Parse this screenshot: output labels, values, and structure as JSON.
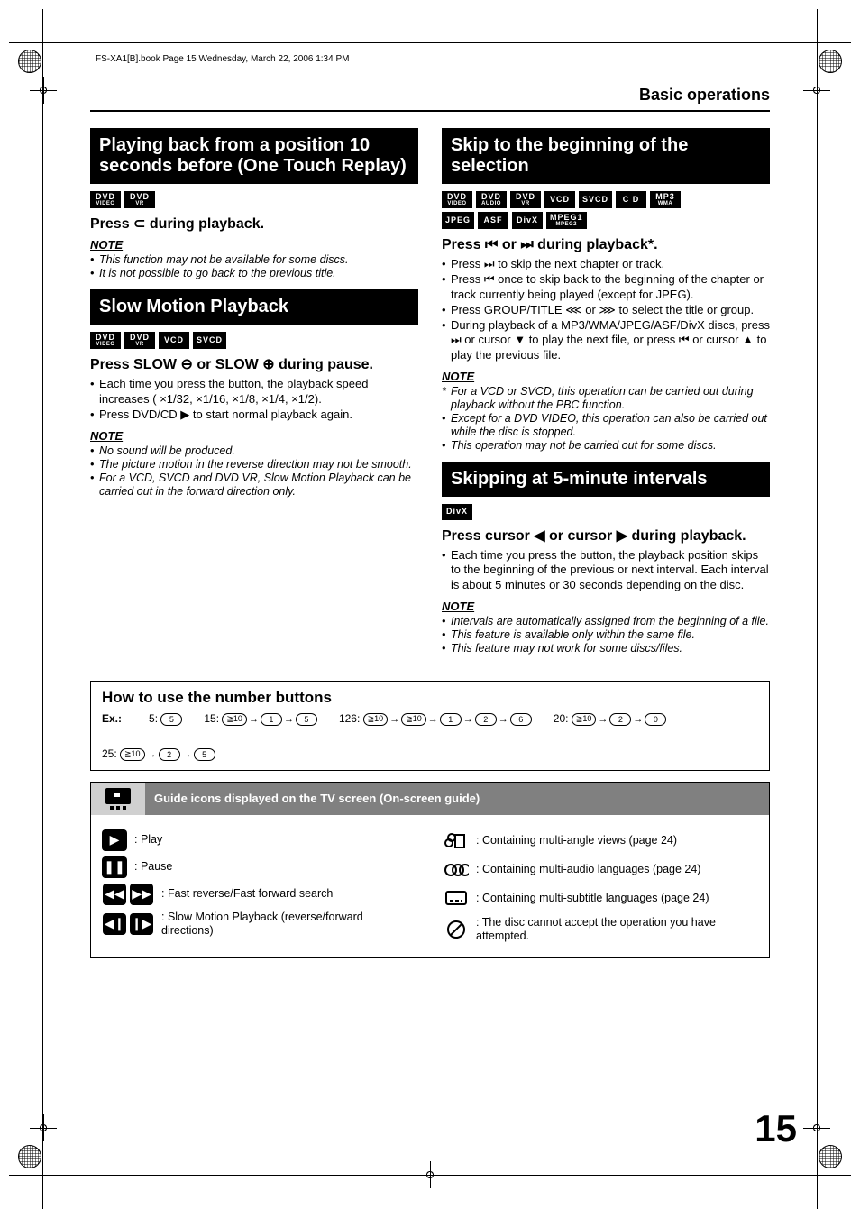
{
  "running_header": "FS-XA1[B].book  Page 15  Wednesday, March 22, 2006  1:34 PM",
  "section_header": "Basic operations",
  "page_number": "15",
  "left": {
    "replay": {
      "title": "Playing back from a position 10 seconds before (One Touch Replay)",
      "formats": [
        {
          "top": "DVD",
          "sub": "VIDEO"
        },
        {
          "top": "DVD",
          "sub": "VR"
        }
      ],
      "instr_pre": "Press ",
      "instr_sym": "⊂",
      "instr_post": " during playback.",
      "note_h": "NOTE",
      "notes": [
        "This function may not be available for some discs.",
        "It is not possible to go back to the previous title."
      ]
    },
    "slow": {
      "title": "Slow Motion Playback",
      "formats": [
        {
          "top": "DVD",
          "sub": "VIDEO"
        },
        {
          "top": "DVD",
          "sub": "VR"
        },
        {
          "top": "VCD"
        },
        {
          "top": "SVCD"
        }
      ],
      "instr": "Press SLOW ⊖ or SLOW ⊕ during pause.",
      "bullets": [
        "Each time you press the button, the playback speed increases ( ×1/32, ×1/16, ×1/8, ×1/4, ×1/2).",
        "Press DVD/CD ▶ to start normal playback again."
      ],
      "note_h": "NOTE",
      "notes": [
        "No sound will be produced.",
        "The picture motion in the reverse direction may not be smooth.",
        "For a VCD, SVCD and DVD VR, Slow Motion Playback can be carried out in the forward direction only."
      ]
    }
  },
  "right": {
    "skip": {
      "title": "Skip to the beginning of the selection",
      "formats1": [
        {
          "top": "DVD",
          "sub": "VIDEO"
        },
        {
          "top": "DVD",
          "sub": "AUDIO"
        },
        {
          "top": "DVD",
          "sub": "VR"
        },
        {
          "top": "VCD"
        },
        {
          "top": "SVCD"
        },
        {
          "top": "C D"
        },
        {
          "top": "MP3",
          "sub": "WMA"
        }
      ],
      "formats2": [
        {
          "top": "JPEG"
        },
        {
          "top": "ASF"
        },
        {
          "top": "DivX"
        },
        {
          "top": "MPEG1",
          "sub": "MPEG2"
        }
      ],
      "instr": "Press ⏮ or ⏭ during playback*.",
      "bullets": [
        "Press ⏭ to skip the next chapter or track.",
        "Press ⏮ once to skip back to the beginning of the chapter or track currently being played (except for JPEG).",
        "Press GROUP/TITLE  ⋘ or ⋙ to select the title or group.",
        "During playback of a MP3/WMA/JPEG/ASF/DivX discs, press ⏭ or cursor ▼ to play the next file, or press ⏮ or cursor ▲ to play the previous file."
      ],
      "note_h": "NOTE",
      "notes": [
        {
          "star": true,
          "t": "For a VCD or SVCD, this operation can be carried out during playback without the PBC function."
        },
        {
          "t": "Except for a DVD VIDEO, this operation can also be carried out while the disc is stopped."
        },
        {
          "t": "This operation may not be carried out for some discs."
        }
      ]
    },
    "interval": {
      "title": "Skipping at 5-minute intervals",
      "formats": [
        {
          "top": "DivX"
        }
      ],
      "instr": "Press cursor ◀ or cursor ▶ during playback.",
      "bullets": [
        "Each time you press the button, the playback position skips to the beginning of the previous or next interval. Each interval is about 5 minutes or 30 seconds depending on the disc."
      ],
      "note_h": "NOTE",
      "notes": [
        "Intervals are automatically assigned from the beginning of a file.",
        "This feature is available only within the same file.",
        "This feature may not work for some discs/files."
      ]
    }
  },
  "numbers": {
    "title": "How to use the number buttons",
    "ex": "Ex.:",
    "items": [
      {
        "label": "5:",
        "seq": [
          "5"
        ]
      },
      {
        "label": "15:",
        "seq": [
          "h10",
          "1",
          "5"
        ]
      },
      {
        "label": "126:",
        "seq": [
          "h10",
          "h10",
          "1",
          "2",
          "6"
        ]
      },
      {
        "label": "20:",
        "seq": [
          "h10",
          "2",
          "0"
        ]
      },
      {
        "label": "25:",
        "seq": [
          "h10",
          "2",
          "5"
        ]
      }
    ]
  },
  "guide": {
    "title": "Guide icons displayed on the TV screen (On-screen guide)",
    "left": [
      {
        "icon": "▶",
        "text": ": Play"
      },
      {
        "icon": "❚❚",
        "text": ": Pause"
      },
      {
        "icon": "pair-rew",
        "text": ": Fast reverse/Fast forward search"
      },
      {
        "icon": "pair-slow",
        "text": ": Slow Motion Playback (reverse/forward directions)"
      }
    ],
    "right": [
      {
        "svg": "angle",
        "text": ": Containing multi-angle views (page 24)"
      },
      {
        "svg": "audio",
        "text": ": Containing multi-audio languages (page 24)"
      },
      {
        "svg": "subtitle",
        "text": ": Containing multi-subtitle languages (page 24)"
      },
      {
        "svg": "prohibit",
        "text": ": The disc cannot accept the operation you have attempted."
      }
    ]
  }
}
